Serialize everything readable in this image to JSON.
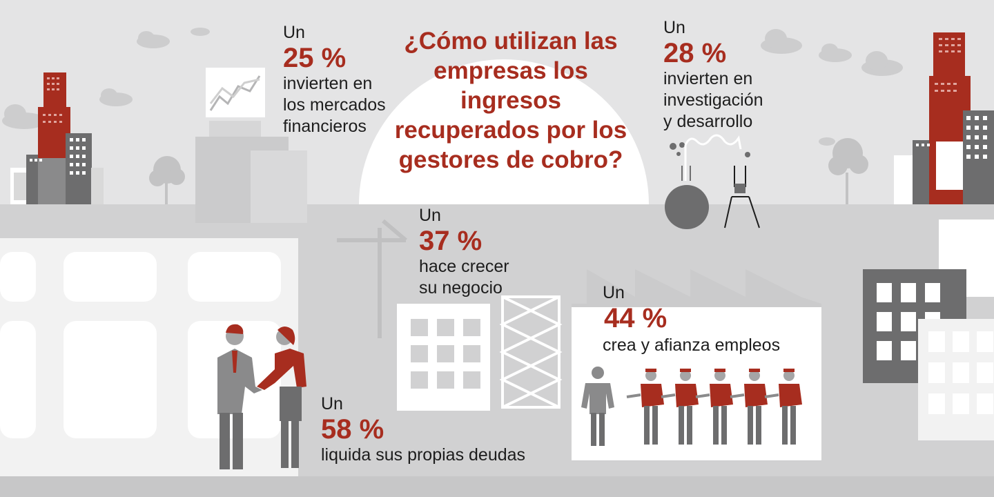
{
  "title": "¿Cómo utilizan las empresas los ingresos recuperados por los gestores de cobro?",
  "stats": [
    {
      "lead": "Un",
      "percent": "25 %",
      "desc_lines": [
        "invierten en",
        "los mercados",
        "financieros"
      ]
    },
    {
      "lead": "Un",
      "percent": "28 %",
      "desc_lines": [
        "invierten en",
        "investigación",
        "y desarrollo"
      ]
    },
    {
      "lead": "Un",
      "percent": "37 %",
      "desc_lines": [
        "hace crecer",
        "su negocio"
      ]
    },
    {
      "lead": "Un",
      "percent": "44 %",
      "desc_lines": [
        "crea y afianza empleos"
      ]
    },
    {
      "lead": "Un",
      "percent": "58 %",
      "desc_lines": [
        "liquida sus propias deudas"
      ]
    }
  ],
  "colors": {
    "accent": "#a72d1f",
    "background": "#e4e4e5",
    "ground": "#cfcfd0",
    "dark_gray": "#6d6d6e"
  },
  "icons": [
    "cloud-icon",
    "skyscraper-icon",
    "tree-icon",
    "rising-chart-icon",
    "flask-icon",
    "crane-icon",
    "factory-icon",
    "handshake-icon",
    "worker-icon"
  ]
}
